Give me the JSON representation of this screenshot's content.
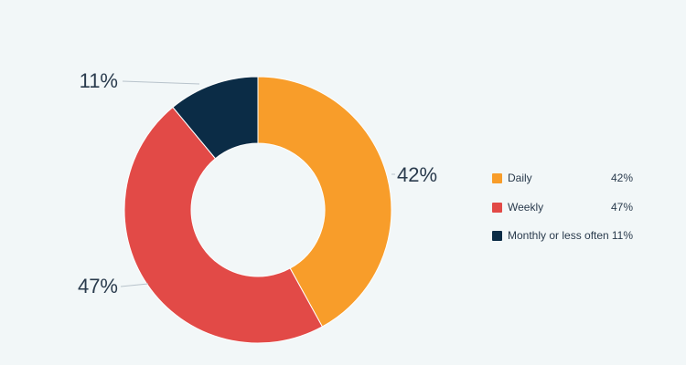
{
  "chart_data": {
    "type": "pie",
    "donut": true,
    "categories": [
      "Daily",
      "Weekly",
      "Monthly or less often"
    ],
    "values": [
      42,
      47,
      11
    ],
    "value_labels": [
      "42%",
      "47%",
      "11%"
    ],
    "colors": [
      "#f89d2a",
      "#e24a47",
      "#0b2c46"
    ],
    "title": "",
    "legend_position": "right"
  },
  "legend": {
    "items": [
      {
        "label": "Daily",
        "value": "42%",
        "color": "#f89d2a"
      },
      {
        "label": "Weekly",
        "value": "47%",
        "color": "#e24a47"
      },
      {
        "label": "Monthly or less often",
        "value": "11%",
        "color": "#0b2c46"
      }
    ]
  },
  "colors": {
    "background": "#f2f7f8",
    "text": "#2a3b4d"
  }
}
